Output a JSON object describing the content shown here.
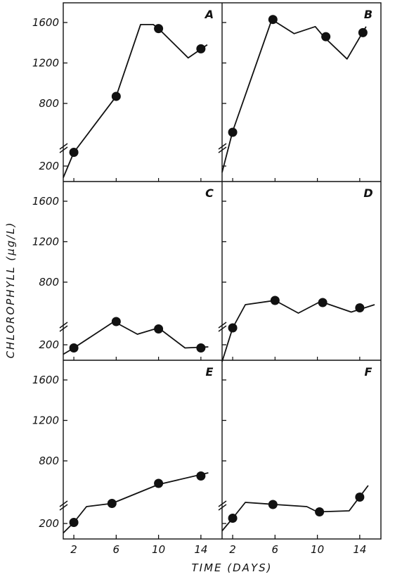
{
  "figure": {
    "xlabel": "TIME (DAYS)",
    "ylabel": "CHLOROPHYLL (μg/L)"
  },
  "chart_data": [
    {
      "type": "line",
      "panel": "A",
      "xlabel": "TIME (DAYS)",
      "ylabel": "CHLOROPHYLL (μg/L)",
      "xlim": [
        0,
        16
      ],
      "ylim": [
        0,
        1700
      ],
      "xticks": [
        2,
        6,
        10,
        14
      ],
      "yticks": [
        200,
        800,
        1200,
        1600
      ],
      "y_axis_break": true,
      "line": [
        [
          1,
          90
        ],
        [
          2,
          330
        ],
        [
          6,
          870
        ],
        [
          8.3,
          1580
        ],
        [
          9.5,
          1580
        ],
        [
          10,
          1540
        ],
        [
          12.8,
          1250
        ],
        [
          14.6,
          1380
        ]
      ],
      "points": [
        [
          2,
          330
        ],
        [
          6,
          870
        ],
        [
          10,
          1540
        ],
        [
          14,
          1340
        ]
      ]
    },
    {
      "type": "line",
      "panel": "B",
      "xlabel": "TIME (DAYS)",
      "ylabel": "CHLOROPHYLL (μg/L)",
      "xlim": [
        0,
        16
      ],
      "ylim": [
        0,
        1700
      ],
      "xticks": [
        2,
        6,
        10,
        14
      ],
      "yticks": [
        200,
        800,
        1200,
        1600
      ],
      "y_axis_break": true,
      "line": [
        [
          1,
          140
        ],
        [
          2,
          530
        ],
        [
          5.7,
          1630
        ],
        [
          7.8,
          1490
        ],
        [
          9.8,
          1560
        ],
        [
          10.6,
          1460
        ],
        [
          12.8,
          1240
        ],
        [
          14.6,
          1560
        ]
      ],
      "points": [
        [
          2,
          520
        ],
        [
          5.8,
          1630
        ],
        [
          10.8,
          1460
        ],
        [
          14.3,
          1500
        ]
      ]
    },
    {
      "type": "line",
      "panel": "C",
      "xlabel": "TIME (DAYS)",
      "ylabel": "CHLOROPHYLL (μg/L)",
      "xlim": [
        0,
        16
      ],
      "ylim": [
        0,
        1700
      ],
      "xticks": [
        2,
        6,
        10,
        14
      ],
      "yticks": [
        200,
        800,
        1200,
        1600
      ],
      "y_axis_break": true,
      "line": [
        [
          1,
          110
        ],
        [
          2,
          170
        ],
        [
          5.8,
          420
        ],
        [
          8,
          300
        ],
        [
          10,
          360
        ],
        [
          12.5,
          170
        ],
        [
          14.7,
          180
        ]
      ],
      "points": [
        [
          2,
          170
        ],
        [
          6,
          420
        ],
        [
          10,
          350
        ],
        [
          14,
          170
        ]
      ]
    },
    {
      "type": "line",
      "panel": "D",
      "xlabel": "TIME (DAYS)",
      "ylabel": "CHLOROPHYLL (μg/L)",
      "xlim": [
        0,
        16
      ],
      "ylim": [
        0,
        1700
      ],
      "xticks": [
        2,
        6,
        10,
        14
      ],
      "yticks": [
        200,
        800,
        1200,
        1600
      ],
      "y_axis_break": true,
      "line": [
        [
          1,
          40
        ],
        [
          2,
          360
        ],
        [
          3.2,
          580
        ],
        [
          6,
          620
        ],
        [
          8.2,
          500
        ],
        [
          10.3,
          610
        ],
        [
          13.2,
          510
        ],
        [
          15.4,
          580
        ]
      ],
      "points": [
        [
          2,
          360
        ],
        [
          6,
          620
        ],
        [
          10.5,
          600
        ],
        [
          14,
          550
        ]
      ]
    },
    {
      "type": "line",
      "panel": "E",
      "xlabel": "TIME (DAYS)",
      "ylabel": "CHLOROPHYLL (μg/L)",
      "xlim": [
        0,
        16
      ],
      "ylim": [
        0,
        1700
      ],
      "xticks": [
        2,
        6,
        10,
        14
      ],
      "yticks": [
        200,
        800,
        1200,
        1600
      ],
      "y_axis_break": true,
      "line": [
        [
          1,
          110
        ],
        [
          2,
          210
        ],
        [
          3.2,
          360
        ],
        [
          5.6,
          390
        ],
        [
          10,
          570
        ],
        [
          14.7,
          680
        ]
      ],
      "points": [
        [
          2,
          210
        ],
        [
          5.6,
          390
        ],
        [
          10,
          580
        ],
        [
          14,
          650
        ]
      ]
    },
    {
      "type": "line",
      "panel": "F",
      "xlabel": "TIME (DAYS)",
      "ylabel": "CHLOROPHYLL (μg/L)",
      "xlim": [
        0,
        16
      ],
      "ylim": [
        0,
        1700
      ],
      "xticks": [
        2,
        6,
        10,
        14
      ],
      "yticks": [
        200,
        800,
        1200,
        1600
      ],
      "y_axis_break": true,
      "line": [
        [
          1,
          130
        ],
        [
          2,
          250
        ],
        [
          3.2,
          400
        ],
        [
          6,
          380
        ],
        [
          9,
          360
        ],
        [
          10,
          310
        ],
        [
          13,
          320
        ],
        [
          14.8,
          560
        ]
      ],
      "points": [
        [
          2,
          250
        ],
        [
          5.8,
          380
        ],
        [
          10.2,
          310
        ],
        [
          14,
          450
        ]
      ]
    }
  ]
}
